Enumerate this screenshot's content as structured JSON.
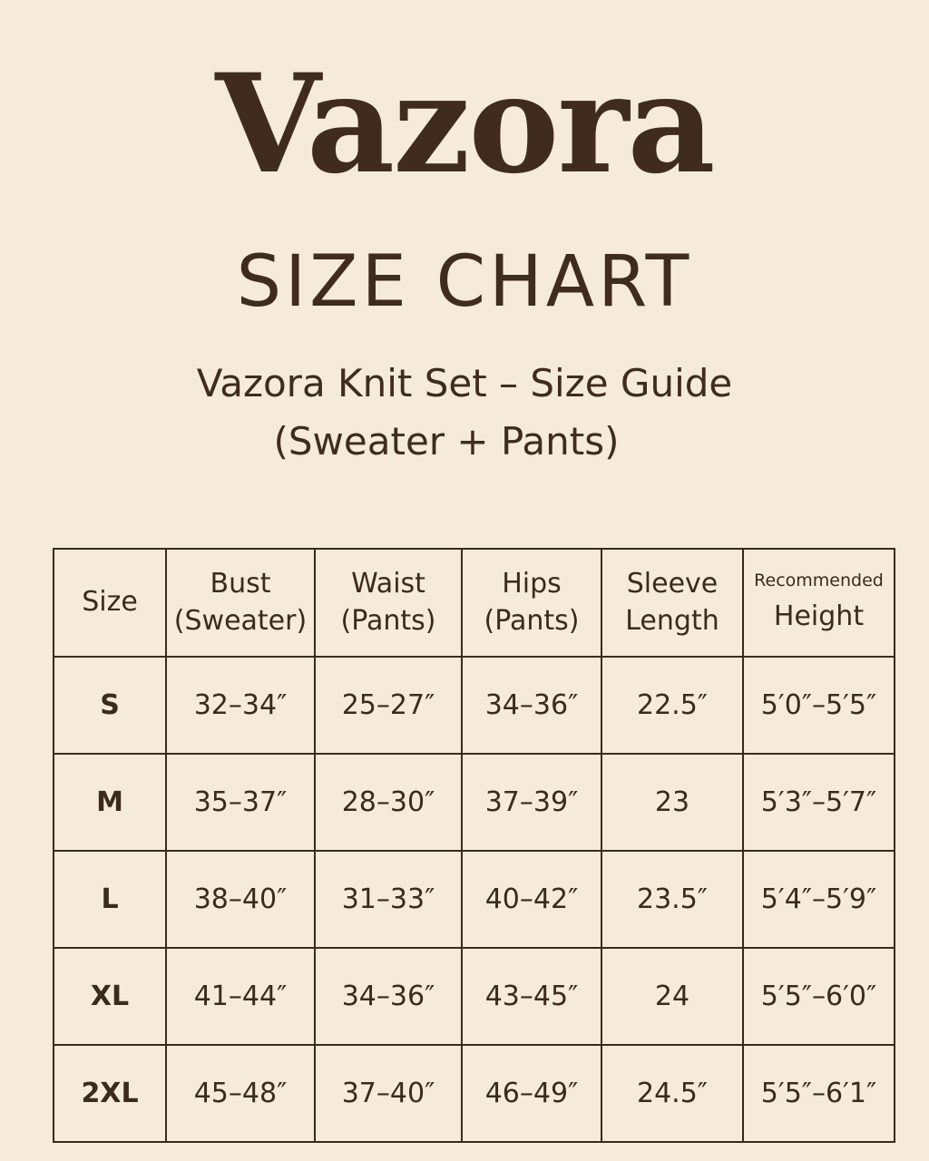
{
  "brand": "Vazora",
  "title": "SIZE CHART",
  "subtitle_line1": "Vazora Knit Set – Size Guide",
  "subtitle_line2": "(Sweater + Pants)",
  "table": {
    "headers": [
      {
        "line1": "Size",
        "line2": ""
      },
      {
        "line1": "Bust",
        "line2": "(Sweater)"
      },
      {
        "line1": "Waist",
        "line2": "(Pants)"
      },
      {
        "line1": "Hips",
        "line2": "(Pants)"
      },
      {
        "line1": "Sleeve",
        "line2": "Length"
      },
      {
        "line1": "Recommended",
        "line2": "Height"
      }
    ],
    "rows": [
      [
        "S",
        "32–34″",
        "25–27″",
        "34–36″",
        "22.5″",
        "5′0″–5′5″"
      ],
      [
        "M",
        "35–37″",
        "28–30″",
        "37–39″",
        "23",
        "5′3″–5′7″"
      ],
      [
        "L",
        "38–40″",
        "31–33″",
        "40–42″",
        "23.5″",
        "5′4″–5′9″"
      ],
      [
        "XL",
        "41–44″",
        "34–36″",
        "43–45″",
        "24",
        "5′5″–6′0″"
      ],
      [
        "2XL",
        "45–48″",
        "37–40″",
        "46–49″",
        "24.5″",
        "5′5″–6′1″"
      ]
    ]
  }
}
